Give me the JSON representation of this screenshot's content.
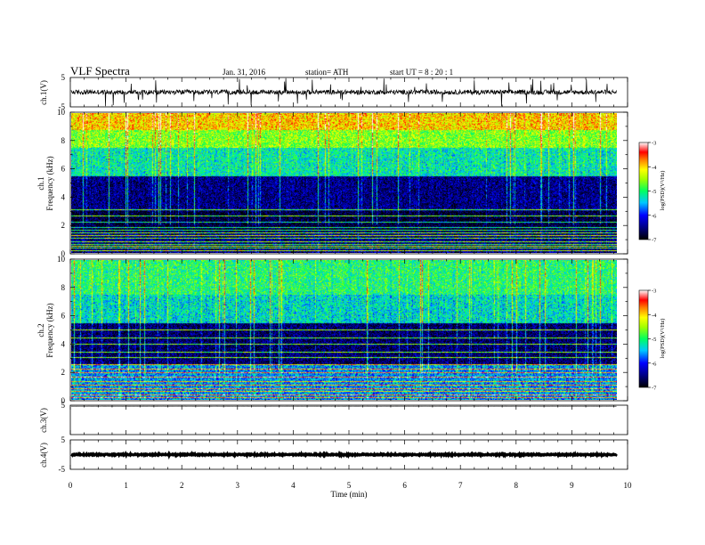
{
  "header": {
    "title": "VLF Spectra",
    "date": "Jan. 31, 2016",
    "station": "station= ATH",
    "start": "start UT = 8 : 20 : 1"
  },
  "chart_data": [
    {
      "type": "line",
      "name": "ch1-waveform",
      "ylabel": "ch.1(V)",
      "ylim": [
        -5,
        5
      ],
      "yticks": [
        "5",
        "-5"
      ],
      "xlim": [
        0,
        10
      ],
      "data_end_min": 9.8,
      "baseline_v": 0.0
    },
    {
      "type": "heatmap",
      "name": "ch1-spectrogram",
      "ylabel_channel": "ch.1",
      "ylabel": "Frequency (kHz)",
      "ylim": [
        0,
        10
      ],
      "yticks": [
        "0",
        "2",
        "4",
        "6",
        "8",
        "10"
      ],
      "xlim": [
        0,
        10
      ],
      "data_end_min": 9.8,
      "colorbar": {
        "label": "log(PSD)(V²/Hz)",
        "range": [
          -7,
          -3
        ],
        "ticks": [
          "-3",
          "-4",
          "-5",
          "-6",
          "-7"
        ]
      },
      "approx_level_by_band_khz": [
        {
          "band": [
            0,
            1.5
          ],
          "level": -6.5
        },
        {
          "band": [
            1.5,
            3.0
          ],
          "level": -6.8
        },
        {
          "band": [
            3.0,
            5.5
          ],
          "level": -6.5
        },
        {
          "band": [
            5.5,
            7.5
          ],
          "level": -5.2
        },
        {
          "band": [
            7.5,
            8.8
          ],
          "level": -4.6
        },
        {
          "band": [
            8.8,
            10
          ],
          "level": -4.0
        }
      ]
    },
    {
      "type": "heatmap",
      "name": "ch2-spectrogram",
      "ylabel_channel": "ch.2",
      "ylabel": "Frequency (kHz)",
      "ylim": [
        0,
        10
      ],
      "yticks": [
        "0",
        "2",
        "4",
        "6",
        "8",
        "10"
      ],
      "xlim": [
        0,
        10
      ],
      "data_end_min": 9.8,
      "colorbar": {
        "label": "log(PSD)(V²/Hz)",
        "range": [
          -7,
          -3
        ],
        "ticks": [
          "-3",
          "-4",
          "-5",
          "-6",
          "-7"
        ]
      },
      "approx_level_by_band_khz": [
        {
          "band": [
            0,
            2.5
          ],
          "level": -5.6
        },
        {
          "band": [
            2.5,
            5.5
          ],
          "level": -6.6
        },
        {
          "band": [
            5.5,
            7.5
          ],
          "level": -5.3
        },
        {
          "band": [
            7.5,
            10
          ],
          "level": -5.0
        }
      ]
    },
    {
      "type": "line",
      "name": "ch3-waveform",
      "ylabel": "ch.3(V)",
      "ylim": [
        -5,
        5
      ],
      "yticks": [
        "5"
      ],
      "xlim": [
        0,
        10
      ],
      "data_end_min": 9.8,
      "baseline_v": 4.6
    },
    {
      "type": "line",
      "name": "ch4-waveform",
      "ylabel": "ch.4(V)",
      "ylim": [
        -5,
        5
      ],
      "yticks": [
        "5",
        "-5"
      ],
      "xlim": [
        0,
        10
      ],
      "data_end_min": 9.8,
      "baseline_v": 0.0
    }
  ],
  "xaxis": {
    "label": "Time (min)",
    "ticks": [
      "0",
      "1",
      "2",
      "3",
      "4",
      "5",
      "6",
      "7",
      "8",
      "9",
      "10"
    ]
  }
}
